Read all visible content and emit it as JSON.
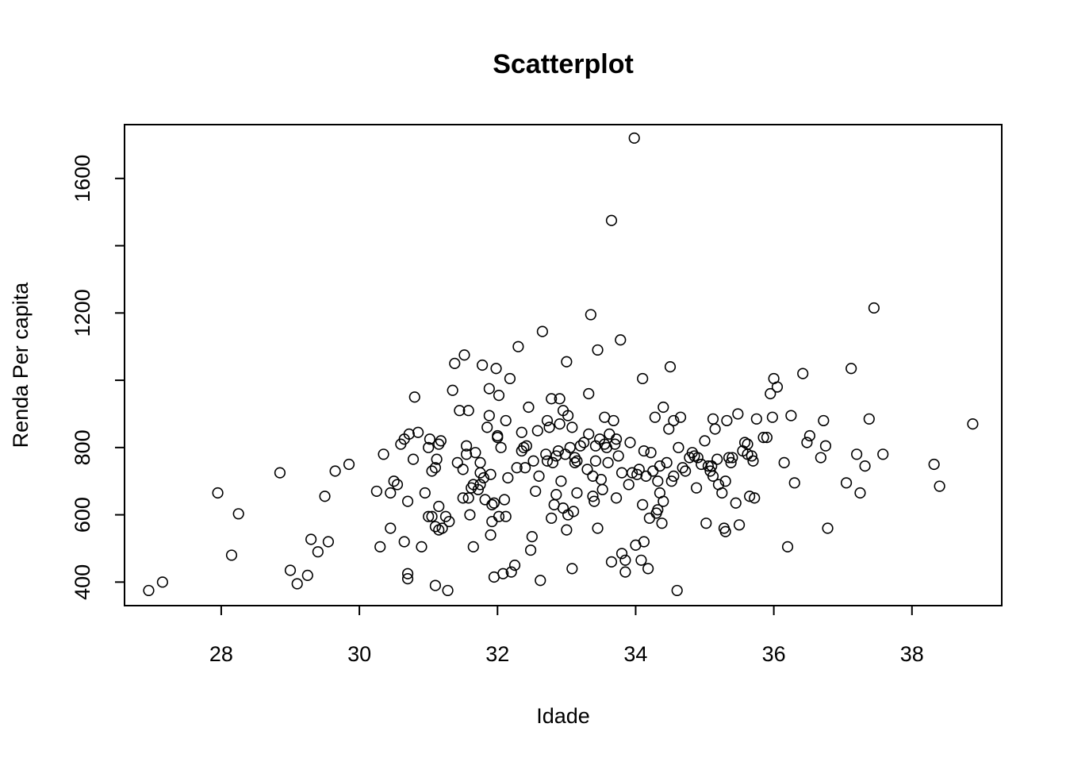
{
  "chart_data": {
    "type": "scatter",
    "title": "Scatterplot",
    "xlabel": "Idade",
    "ylabel": "Renda Per capita",
    "xlim": [
      26.6,
      39.3
    ],
    "ylim": [
      330,
      1760
    ],
    "x_ticks": [
      28,
      30,
      32,
      34,
      36,
      38
    ],
    "y_ticks": [
      400,
      600,
      800,
      1000,
      1200,
      1400,
      1600
    ],
    "y_tick_labels": [
      "400",
      "600",
      "800",
      "",
      "1200",
      "",
      "1600"
    ],
    "grid": false,
    "legend": "none",
    "marker": "open-circle",
    "colors": {
      "points": "#000000",
      "frame": "#000000",
      "background": "#ffffff"
    },
    "points": [
      [
        26.95,
        375
      ],
      [
        27.15,
        400
      ],
      [
        27.95,
        665
      ],
      [
        28.15,
        480
      ],
      [
        28.25,
        603
      ],
      [
        28.85,
        725
      ],
      [
        29.0,
        435
      ],
      [
        29.1,
        395
      ],
      [
        29.25,
        420
      ],
      [
        29.3,
        527
      ],
      [
        29.4,
        490
      ],
      [
        29.5,
        655
      ],
      [
        29.55,
        520
      ],
      [
        29.65,
        730
      ],
      [
        29.85,
        750
      ],
      [
        30.25,
        670
      ],
      [
        30.3,
        505
      ],
      [
        30.35,
        780
      ],
      [
        30.45,
        665
      ],
      [
        30.45,
        560
      ],
      [
        30.5,
        700
      ],
      [
        30.55,
        690
      ],
      [
        30.6,
        810
      ],
      [
        30.65,
        825
      ],
      [
        30.65,
        520
      ],
      [
        30.7,
        425
      ],
      [
        30.7,
        410
      ],
      [
        30.7,
        640
      ],
      [
        30.72,
        840
      ],
      [
        30.78,
        765
      ],
      [
        30.8,
        950
      ],
      [
        30.85,
        845
      ],
      [
        30.9,
        505
      ],
      [
        30.95,
        665
      ],
      [
        31.0,
        800
      ],
      [
        31.0,
        595
      ],
      [
        31.02,
        825
      ],
      [
        31.05,
        730
      ],
      [
        31.05,
        595
      ],
      [
        31.1,
        740
      ],
      [
        31.1,
        565
      ],
      [
        31.1,
        390
      ],
      [
        31.12,
        765
      ],
      [
        31.15,
        810
      ],
      [
        31.15,
        555
      ],
      [
        31.15,
        625
      ],
      [
        31.18,
        820
      ],
      [
        31.2,
        560
      ],
      [
        31.25,
        595
      ],
      [
        31.28,
        375
      ],
      [
        31.3,
        580
      ],
      [
        31.35,
        970
      ],
      [
        31.38,
        1050
      ],
      [
        31.42,
        755
      ],
      [
        31.45,
        910
      ],
      [
        31.5,
        650
      ],
      [
        31.5,
        735
      ],
      [
        31.52,
        1075
      ],
      [
        31.55,
        780
      ],
      [
        31.55,
        805
      ],
      [
        31.58,
        910
      ],
      [
        31.58,
        650
      ],
      [
        31.6,
        600
      ],
      [
        31.62,
        680
      ],
      [
        31.65,
        690
      ],
      [
        31.65,
        505
      ],
      [
        31.68,
        785
      ],
      [
        31.72,
        675
      ],
      [
        31.75,
        755
      ],
      [
        31.75,
        690
      ],
      [
        31.75,
        725
      ],
      [
        31.78,
        1045
      ],
      [
        31.8,
        710
      ],
      [
        31.82,
        645
      ],
      [
        31.85,
        860
      ],
      [
        31.88,
        975
      ],
      [
        31.88,
        895
      ],
      [
        31.9,
        720
      ],
      [
        31.9,
        540
      ],
      [
        31.92,
        580
      ],
      [
        31.92,
        630
      ],
      [
        31.95,
        635
      ],
      [
        31.95,
        415
      ],
      [
        31.98,
        1035
      ],
      [
        32.0,
        835
      ],
      [
        32.0,
        830
      ],
      [
        32.02,
        955
      ],
      [
        32.02,
        595
      ],
      [
        32.05,
        800
      ],
      [
        32.08,
        425
      ],
      [
        32.1,
        645
      ],
      [
        32.12,
        880
      ],
      [
        32.12,
        595
      ],
      [
        32.15,
        710
      ],
      [
        32.18,
        1005
      ],
      [
        32.2,
        430
      ],
      [
        32.25,
        450
      ],
      [
        32.28,
        740
      ],
      [
        32.3,
        1100
      ],
      [
        32.35,
        845
      ],
      [
        32.35,
        790
      ],
      [
        32.38,
        800
      ],
      [
        32.4,
        740
      ],
      [
        32.42,
        805
      ],
      [
        32.45,
        920
      ],
      [
        32.48,
        495
      ],
      [
        32.5,
        535
      ],
      [
        32.52,
        760
      ],
      [
        32.55,
        670
      ],
      [
        32.58,
        850
      ],
      [
        32.6,
        715
      ],
      [
        32.62,
        405
      ],
      [
        32.65,
        1145
      ],
      [
        32.7,
        780
      ],
      [
        32.72,
        880
      ],
      [
        32.72,
        760
      ],
      [
        32.75,
        860
      ],
      [
        32.78,
        590
      ],
      [
        32.78,
        945
      ],
      [
        32.8,
        755
      ],
      [
        32.82,
        630
      ],
      [
        32.85,
        775
      ],
      [
        32.85,
        660
      ],
      [
        32.88,
        790
      ],
      [
        32.9,
        870
      ],
      [
        32.9,
        945
      ],
      [
        32.92,
        700
      ],
      [
        32.95,
        620
      ],
      [
        32.95,
        910
      ],
      [
        32.98,
        780
      ],
      [
        33.0,
        1055
      ],
      [
        33.0,
        555
      ],
      [
        33.02,
        895
      ],
      [
        33.02,
        600
      ],
      [
        33.05,
        800
      ],
      [
        33.08,
        860
      ],
      [
        33.08,
        440
      ],
      [
        33.1,
        610
      ],
      [
        33.12,
        770
      ],
      [
        33.12,
        755
      ],
      [
        33.15,
        665
      ],
      [
        33.15,
        760
      ],
      [
        33.2,
        805
      ],
      [
        33.25,
        815
      ],
      [
        33.3,
        735
      ],
      [
        33.32,
        840
      ],
      [
        33.32,
        960
      ],
      [
        33.35,
        1195
      ],
      [
        33.38,
        715
      ],
      [
        33.38,
        655
      ],
      [
        33.4,
        640
      ],
      [
        33.42,
        805
      ],
      [
        33.42,
        760
      ],
      [
        33.45,
        560
      ],
      [
        33.45,
        1090
      ],
      [
        33.48,
        825
      ],
      [
        33.5,
        705
      ],
      [
        33.52,
        675
      ],
      [
        33.55,
        810
      ],
      [
        33.55,
        890
      ],
      [
        33.58,
        800
      ],
      [
        33.6,
        755
      ],
      [
        33.62,
        840
      ],
      [
        33.65,
        460
      ],
      [
        33.65,
        1475
      ],
      [
        33.68,
        880
      ],
      [
        33.7,
        810
      ],
      [
        33.72,
        650
      ],
      [
        33.72,
        825
      ],
      [
        33.75,
        775
      ],
      [
        33.78,
        1120
      ],
      [
        33.8,
        485
      ],
      [
        33.8,
        725
      ],
      [
        33.85,
        430
      ],
      [
        33.85,
        465
      ],
      [
        33.9,
        690
      ],
      [
        33.92,
        815
      ],
      [
        33.95,
        725
      ],
      [
        33.98,
        1720
      ],
      [
        34.0,
        510
      ],
      [
        34.02,
        720
      ],
      [
        34.05,
        735
      ],
      [
        34.08,
        465
      ],
      [
        34.1,
        630
      ],
      [
        34.1,
        1005
      ],
      [
        34.12,
        520
      ],
      [
        34.12,
        790
      ],
      [
        34.15,
        715
      ],
      [
        34.18,
        440
      ],
      [
        34.2,
        590
      ],
      [
        34.22,
        785
      ],
      [
        34.25,
        730
      ],
      [
        34.28,
        890
      ],
      [
        34.3,
        605
      ],
      [
        34.32,
        615
      ],
      [
        34.32,
        700
      ],
      [
        34.35,
        665
      ],
      [
        34.35,
        745
      ],
      [
        34.38,
        575
      ],
      [
        34.4,
        640
      ],
      [
        34.4,
        920
      ],
      [
        34.45,
        755
      ],
      [
        34.48,
        855
      ],
      [
        34.5,
        1040
      ],
      [
        34.52,
        700
      ],
      [
        34.55,
        715
      ],
      [
        34.55,
        880
      ],
      [
        34.6,
        375
      ],
      [
        34.62,
        800
      ],
      [
        34.65,
        890
      ],
      [
        34.68,
        740
      ],
      [
        34.72,
        730
      ],
      [
        34.78,
        770
      ],
      [
        34.82,
        785
      ],
      [
        34.85,
        775
      ],
      [
        34.88,
        680
      ],
      [
        34.9,
        770
      ],
      [
        34.95,
        750
      ],
      [
        35.0,
        820
      ],
      [
        35.02,
        575
      ],
      [
        35.05,
        745
      ],
      [
        35.08,
        730
      ],
      [
        35.1,
        745
      ],
      [
        35.12,
        715
      ],
      [
        35.12,
        885
      ],
      [
        35.15,
        855
      ],
      [
        35.18,
        765
      ],
      [
        35.2,
        690
      ],
      [
        35.25,
        665
      ],
      [
        35.28,
        560
      ],
      [
        35.3,
        700
      ],
      [
        35.3,
        550
      ],
      [
        35.32,
        880
      ],
      [
        35.35,
        770
      ],
      [
        35.38,
        755
      ],
      [
        35.4,
        770
      ],
      [
        35.45,
        635
      ],
      [
        35.48,
        900
      ],
      [
        35.5,
        570
      ],
      [
        35.55,
        790
      ],
      [
        35.58,
        815
      ],
      [
        35.62,
        810
      ],
      [
        35.62,
        780
      ],
      [
        35.65,
        655
      ],
      [
        35.68,
        775
      ],
      [
        35.7,
        760
      ],
      [
        35.72,
        650
      ],
      [
        35.75,
        885
      ],
      [
        35.85,
        830
      ],
      [
        35.9,
        830
      ],
      [
        35.95,
        960
      ],
      [
        35.98,
        890
      ],
      [
        36.0,
        1005
      ],
      [
        36.05,
        980
      ],
      [
        36.15,
        755
      ],
      [
        36.2,
        505
      ],
      [
        36.25,
        895
      ],
      [
        36.3,
        695
      ],
      [
        36.42,
        1020
      ],
      [
        36.48,
        815
      ],
      [
        36.52,
        835
      ],
      [
        36.68,
        770
      ],
      [
        36.72,
        880
      ],
      [
        36.75,
        805
      ],
      [
        36.78,
        560
      ],
      [
        37.05,
        695
      ],
      [
        37.12,
        1035
      ],
      [
        37.2,
        780
      ],
      [
        37.25,
        665
      ],
      [
        37.32,
        745
      ],
      [
        37.38,
        885
      ],
      [
        37.45,
        1215
      ],
      [
        37.58,
        780
      ],
      [
        38.32,
        750
      ],
      [
        38.4,
        685
      ],
      [
        38.88,
        870
      ]
    ]
  }
}
